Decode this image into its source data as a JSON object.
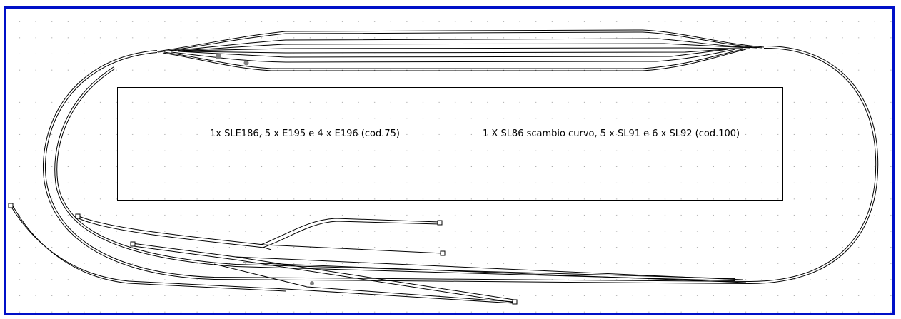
{
  "colors": {
    "frame": "#0010c8",
    "track": "#000000",
    "grid_dot": "#555555",
    "marker": "#808080"
  },
  "grid": {
    "visible": true
  },
  "labels": {
    "left_module": "1x SLE186, 5 x E195 e 4 x E196 (cod.75)",
    "right_module": "1 X SL86 scambio curvo, 5 x SL91 e 6 x SL92 (cod.100)"
  }
}
